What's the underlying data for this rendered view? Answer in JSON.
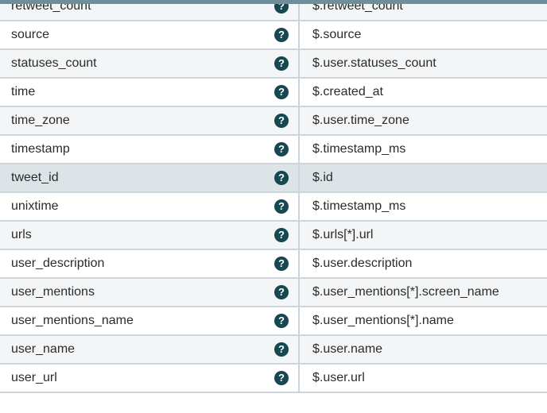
{
  "table": {
    "help_icon_glyph": "?",
    "rows": [
      {
        "field": "retweet_count",
        "path": "$.retweet_count"
      },
      {
        "field": "source",
        "path": "$.source"
      },
      {
        "field": "statuses_count",
        "path": "$.user.statuses_count"
      },
      {
        "field": "time",
        "path": "$.created_at"
      },
      {
        "field": "time_zone",
        "path": "$.user.time_zone"
      },
      {
        "field": "timestamp",
        "path": "$.timestamp_ms"
      },
      {
        "field": "tweet_id",
        "path": "$.id",
        "highlighted": true
      },
      {
        "field": "unixtime",
        "path": "$.timestamp_ms"
      },
      {
        "field": "urls",
        "path": "$.urls[*].url"
      },
      {
        "field": "user_description",
        "path": "$.user.description"
      },
      {
        "field": "user_mentions",
        "path": "$.user_mentions[*].screen_name"
      },
      {
        "field": "user_mentions_name",
        "path": "$.user_mentions[*].name"
      },
      {
        "field": "user_name",
        "path": "$.user.name"
      },
      {
        "field": "user_url",
        "path": "$.user.url"
      }
    ]
  },
  "colors": {
    "header_strip": "#6f8e9a",
    "row_alt_background": "#f3f5f6",
    "row_highlight_background": "#dce4e7",
    "border": "#ccd5d9",
    "help_icon_background": "#17474f",
    "text": "#2b2b2b"
  }
}
